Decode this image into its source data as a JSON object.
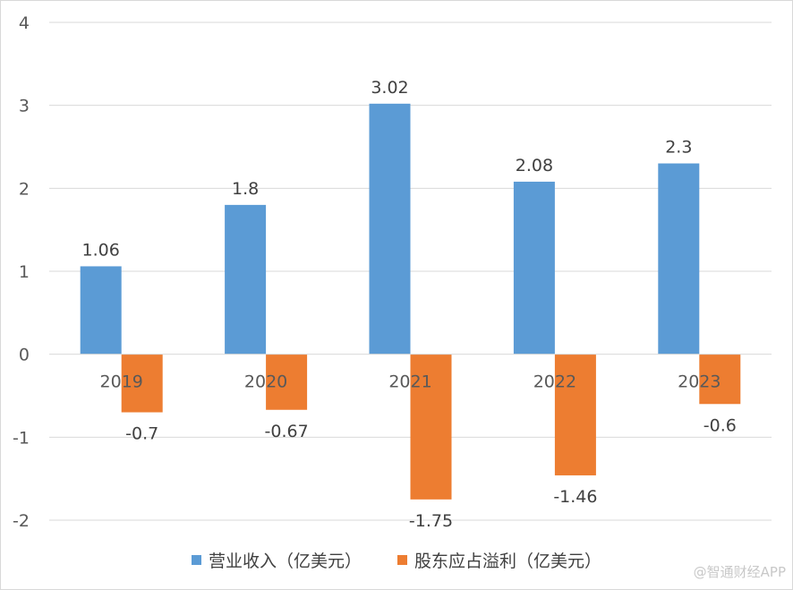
{
  "chart_data": {
    "type": "bar",
    "categories": [
      "2019",
      "2020",
      "2021",
      "2022",
      "2023"
    ],
    "series": [
      {
        "name": "营业收入（亿美元）",
        "values": [
          1.06,
          1.8,
          3.02,
          2.08,
          2.3
        ],
        "color": "#5B9BD5"
      },
      {
        "name": "股东应占溢利（亿美元）",
        "values": [
          -0.7,
          -0.67,
          -1.75,
          -1.46,
          -0.6
        ],
        "color": "#ED7D31"
      }
    ],
    "data_labels": [
      [
        "1.06",
        "1.8",
        "3.02",
        "2.08",
        "2.3"
      ],
      [
        "-0.7",
        "-0.67",
        "-1.75",
        "-1.46",
        "-0.6"
      ]
    ],
    "y_ticks": [
      "-2",
      "-1",
      "0",
      "1",
      "2",
      "3",
      "4"
    ],
    "ylim": [
      -2,
      4
    ],
    "grid": true,
    "legend_position": "bottom"
  },
  "watermark": "@智通财经APP"
}
